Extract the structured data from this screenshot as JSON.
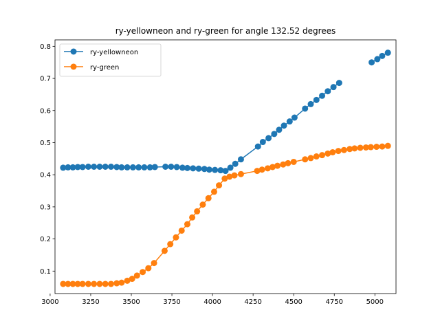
{
  "chart_data": {
    "type": "line",
    "title": "ry-yellowneon and ry-green for angle 132.52 degrees",
    "xlabel": "",
    "ylabel": "",
    "xlim": [
      3030,
      5130
    ],
    "ylim": [
      0.03,
      0.82
    ],
    "xticks": [
      3000,
      3250,
      3500,
      3750,
      4000,
      4250,
      4500,
      4750,
      5000
    ],
    "xtick_labels": [
      "3000",
      "3250",
      "3500",
      "3750",
      "4000",
      "4250",
      "4500",
      "4750",
      "5000"
    ],
    "yticks": [
      0.1,
      0.2,
      0.3,
      0.4,
      0.5,
      0.6,
      0.7,
      0.8
    ],
    "ytick_labels": [
      "0.1",
      "0.2",
      "0.3",
      "0.4",
      "0.5",
      "0.6",
      "0.7",
      "0.8"
    ],
    "grid": false,
    "legend_position": "top-left",
    "series": [
      {
        "name": "ry-yellowneon",
        "color": "#1f77b4",
        "segments": [
          {
            "x": [
              3080,
              3110,
              3140,
              3170,
              3200,
              3235,
              3270,
              3305,
              3340,
              3375,
              3410,
              3440,
              3475,
              3510,
              3545,
              3580,
              3615,
              3645,
              3710,
              3745,
              3780,
              3815,
              3845,
              3880,
              3915,
              3950,
              3980,
              4015,
              4050,
              4080,
              4110,
              4140,
              4175,
              4280,
              4310,
              4345,
              4380,
              4410,
              4440,
              4475,
              4505,
              4570,
              4605,
              4640,
              4675,
              4710,
              4745,
              4780
            ],
            "y": [
              0.422,
              0.423,
              0.423,
              0.424,
              0.424,
              0.425,
              0.425,
              0.425,
              0.425,
              0.425,
              0.424,
              0.423,
              0.423,
              0.423,
              0.423,
              0.423,
              0.423,
              0.424,
              0.425,
              0.425,
              0.424,
              0.422,
              0.421,
              0.42,
              0.419,
              0.418,
              0.416,
              0.415,
              0.414,
              0.412,
              0.422,
              0.434,
              0.448,
              0.488,
              0.502,
              0.514,
              0.527,
              0.54,
              0.553,
              0.566,
              0.578,
              0.606,
              0.62,
              0.633,
              0.646,
              0.66,
              0.673,
              0.686
            ]
          },
          {
            "x": [
              4980,
              5015,
              5045,
              5080
            ],
            "y": [
              0.75,
              0.76,
              0.77,
              0.78
            ]
          }
        ]
      },
      {
        "name": "ry-green",
        "color": "#ff7f0e",
        "segments": [
          {
            "x": [
              3080,
              3110,
              3140,
              3170,
              3200,
              3235,
              3270,
              3305,
              3340,
              3375,
              3410,
              3440,
              3475,
              3505,
              3535,
              3570,
              3605,
              3640,
              3705,
              3740,
              3775,
              3810,
              3845,
              3875,
              3905,
              3940,
              3975,
              4010,
              4040,
              4075,
              4105,
              4135,
              4175,
              4275,
              4305,
              4340,
              4370,
              4400,
              4435,
              4465,
              4500,
              4570,
              4605,
              4640,
              4675,
              4710,
              4740,
              4775,
              4810,
              4845,
              4875,
              4910,
              4945,
              4975,
              5010,
              5045,
              5080
            ],
            "y": [
              0.06,
              0.06,
              0.06,
              0.06,
              0.06,
              0.06,
              0.06,
              0.06,
              0.06,
              0.06,
              0.062,
              0.064,
              0.07,
              0.076,
              0.086,
              0.097,
              0.109,
              0.125,
              0.163,
              0.184,
              0.205,
              0.226,
              0.246,
              0.267,
              0.286,
              0.307,
              0.327,
              0.347,
              0.367,
              0.388,
              0.394,
              0.398,
              0.402,
              0.412,
              0.416,
              0.42,
              0.424,
              0.428,
              0.432,
              0.436,
              0.44,
              0.448,
              0.452,
              0.457,
              0.461,
              0.466,
              0.47,
              0.474,
              0.477,
              0.48,
              0.482,
              0.484,
              0.485,
              0.486,
              0.487,
              0.488,
              0.49
            ]
          }
        ]
      }
    ]
  }
}
